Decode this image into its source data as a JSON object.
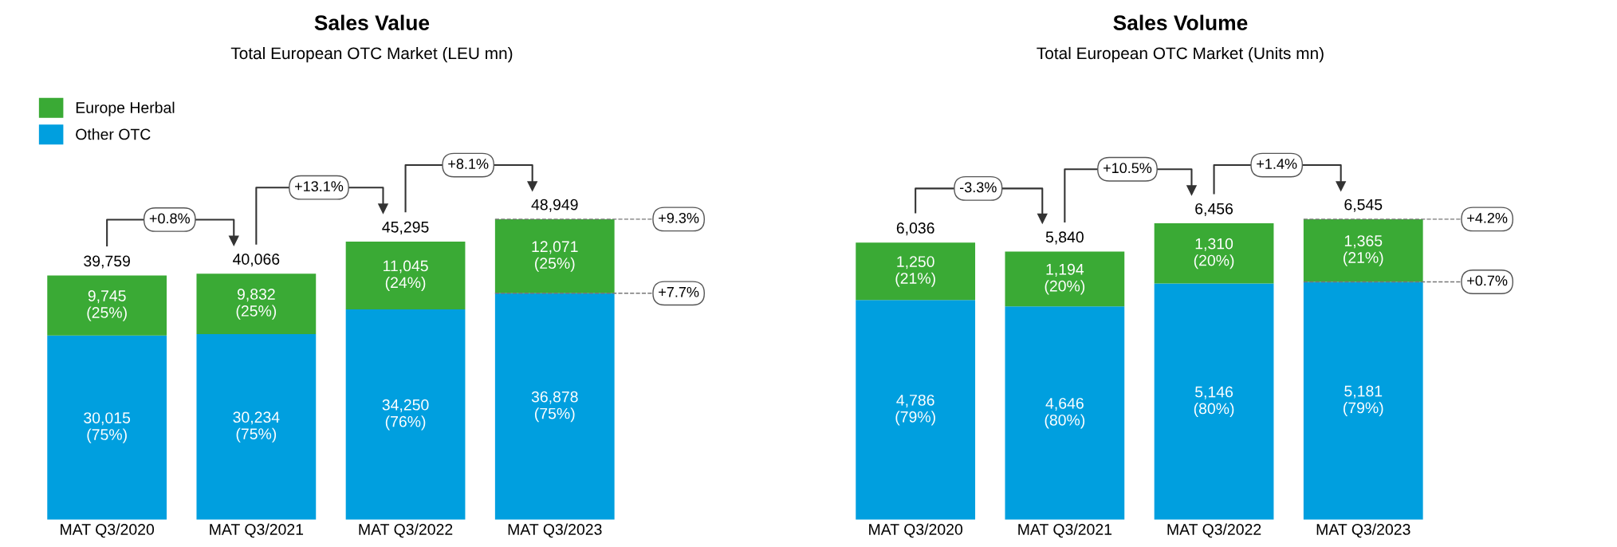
{
  "chart_data": [
    {
      "type": "bar",
      "title": "Sales Value",
      "subtitle": "Total European OTC Market (LEU mn)",
      "stacked": true,
      "legend": "top left",
      "tick_labels": "x",
      "categories": [
        "MAT Q3/2020",
        "MAT Q3/2021",
        "MAT Q3/2022",
        "MAT Q3/2023"
      ],
      "series": [
        {
          "name": "Other OTC",
          "color": "#009fdf",
          "values": [
            30015,
            30234,
            34250,
            36878
          ],
          "value_labels": [
            "30,015\n(75%)",
            "30,234\n(75%)",
            "34,250\n(76%)",
            "36,878\n(75%)"
          ]
        },
        {
          "name": "Europe Herbal",
          "color": "#3aaa35",
          "values": [
            9745,
            9832,
            11045,
            12071
          ],
          "value_labels": [
            "9,745\n(25%)",
            "9,832\n(25%)",
            "11,045\n(24%)",
            "12,071\n(25%)"
          ]
        }
      ],
      "totals": [
        "39,759",
        "40,066",
        "45,295",
        "48,949"
      ],
      "annotations": [
        "+0.8%",
        "+13.1%",
        "+8.1%",
        "+9.3%",
        "+7.7%"
      ]
    },
    {
      "type": "bar",
      "title": "Sales Volume",
      "subtitle": "Total European OTC Market (Units mn)",
      "stacked": true,
      "tick_labels": "x",
      "categories": [
        "MAT Q3/2020",
        "MAT Q3/2021",
        "MAT Q3/2022",
        "MAT Q3/2023"
      ],
      "series": [
        {
          "color": "#009fdf",
          "values": [
            4786,
            4646,
            5146,
            5181
          ],
          "value_labels": [
            "4,786\n(79%)",
            "4,646\n(80%)",
            "5,146\n(80%)",
            "5,181\n(79%)"
          ]
        },
        {
          "color": "#3aaa35",
          "values": [
            1250,
            1194,
            1310,
            1365
          ],
          "value_labels": [
            "1,250\n(21%)",
            "1,194\n(20%)",
            "1,310\n(20%)",
            "1,365\n(21%)"
          ]
        }
      ],
      "totals": [
        "6,036",
        "5,840",
        "6,456",
        "6,545"
      ],
      "annotations": [
        "-3.3%",
        "+10.5%",
        "+1.4%",
        "+4.2%",
        "+0.7%"
      ]
    }
  ]
}
